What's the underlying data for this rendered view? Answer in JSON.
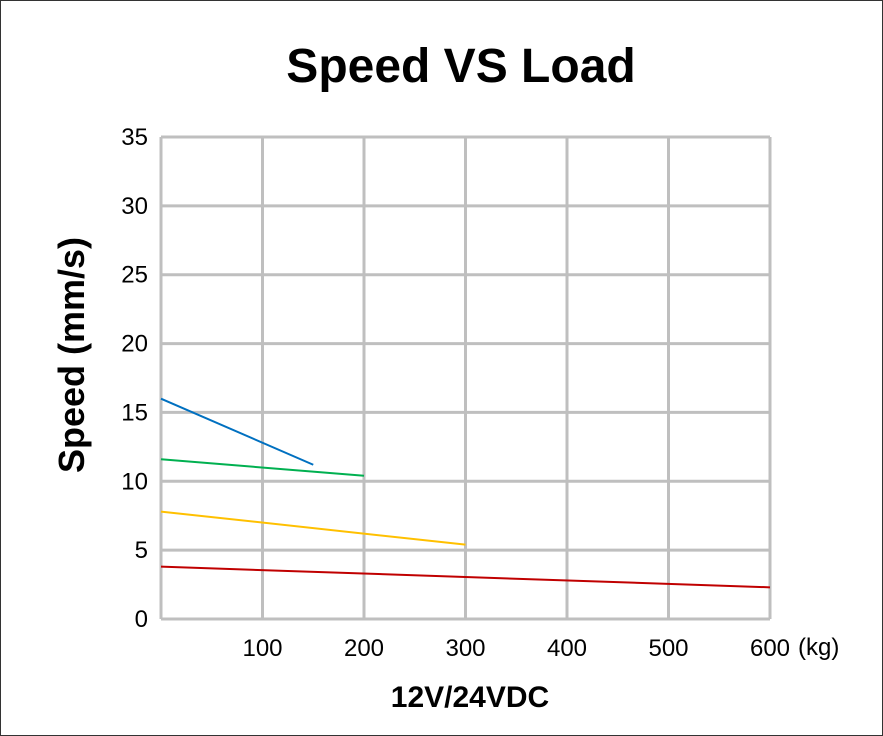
{
  "chart_data": {
    "type": "line",
    "title": "Speed VS Load",
    "xlabel": "12V/24VDC",
    "ylabel": "Speed (mm/s)",
    "x_unit": "(kg)",
    "xlim": [
      0,
      600
    ],
    "ylim": [
      0,
      35
    ],
    "xticks": [
      100,
      200,
      300,
      400,
      500,
      600
    ],
    "yticks": [
      0,
      5,
      10,
      15,
      20,
      25,
      30,
      35
    ],
    "grid": true,
    "series": [
      {
        "color": "#0070C0",
        "x": [
          0,
          150
        ],
        "y": [
          16,
          11.2
        ]
      },
      {
        "color": "#00B050",
        "x": [
          0,
          200
        ],
        "y": [
          11.6,
          10.4
        ]
      },
      {
        "color": "#FFC000",
        "x": [
          0,
          300
        ],
        "y": [
          7.8,
          5.4
        ]
      },
      {
        "color": "#C00000",
        "x": [
          0,
          600
        ],
        "y": [
          3.8,
          2.3
        ]
      }
    ]
  }
}
